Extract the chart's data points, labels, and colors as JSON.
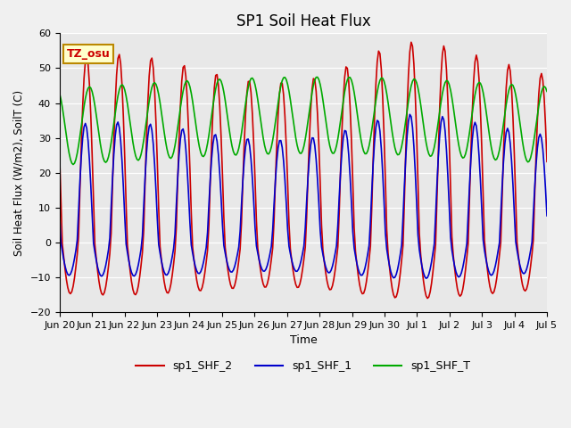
{
  "title": "SP1 Soil Heat Flux",
  "ylabel": "Soil Heat Flux (W/m2), SoilT (C)",
  "xlabel": "Time",
  "ylim": [
    -20,
    60
  ],
  "bg_color": "#e8e8e8",
  "fig_bg_color": "#f0f0f0",
  "annotation_text": "TZ_osu",
  "annotation_bg": "#ffffcc",
  "annotation_border": "#bb8800",
  "x_tick_labels": [
    "Jun 20",
    "Jun 21",
    "Jun 22",
    "Jun 23",
    "Jun 24",
    "Jun 25",
    "Jun 26",
    "Jun 27",
    "Jun 28",
    "Jun 29",
    "Jun 30",
    "Jul 1",
    "Jul 2",
    "Jul 3",
    "Jul 4",
    "Jul 5"
  ],
  "legend_labels": [
    "sp1_SHF_2",
    "sp1_SHF_1",
    "sp1_SHF_T"
  ],
  "line_colors": [
    "#cc0000",
    "#0000cc",
    "#00aa00"
  ],
  "n_days": 15,
  "hours_per_day": 24,
  "shf2_amplitude_day": 50,
  "shf2_amplitude_night": 14,
  "shf1_amplitude_day": 32,
  "shf1_amplitude_night": 9,
  "shft_min": 23,
  "shft_max": 45,
  "yticks": [
    -20,
    -10,
    0,
    10,
    20,
    30,
    40,
    50,
    60
  ]
}
